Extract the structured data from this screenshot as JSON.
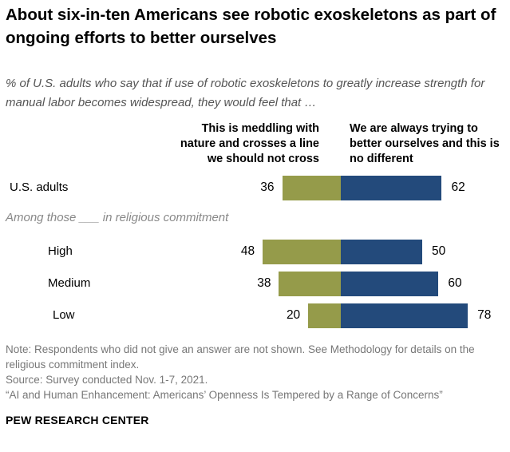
{
  "title": "About six-in-ten Americans see robotic exoskeletons as part of ongoing efforts to better ourselves",
  "subtitle": "% of U.S. adults who say that if use of robotic exoskeletons to greatly increase strength for manual labor becomes widespread, they would feel that …",
  "chart_data": {
    "type": "bar",
    "orientation": "horizontal-diverging",
    "categories": [
      "U.S. adults",
      "High",
      "Medium",
      "Low"
    ],
    "group_label": "Among those ___ in religious commitment",
    "series": [
      {
        "name": "This is meddling with nature and crosses a line we should not cross",
        "values": [
          36,
          48,
          38,
          20
        ],
        "color": "#959b4a"
      },
      {
        "name": "We are always trying to better ourselves and this is no different",
        "values": [
          62,
          50,
          60,
          78
        ],
        "color": "#234a7b"
      }
    ]
  },
  "notes": {
    "note": "Note: Respondents who did not give an answer are not shown. See Methodology for details on the religious commitment index.",
    "source": "Source: Survey conducted Nov. 1-7, 2021.",
    "report": "“AI and Human Enhancement: Americans’ Openness Is Tempered by a Range of Concerns”",
    "brand": "PEW RESEARCH CENTER"
  }
}
